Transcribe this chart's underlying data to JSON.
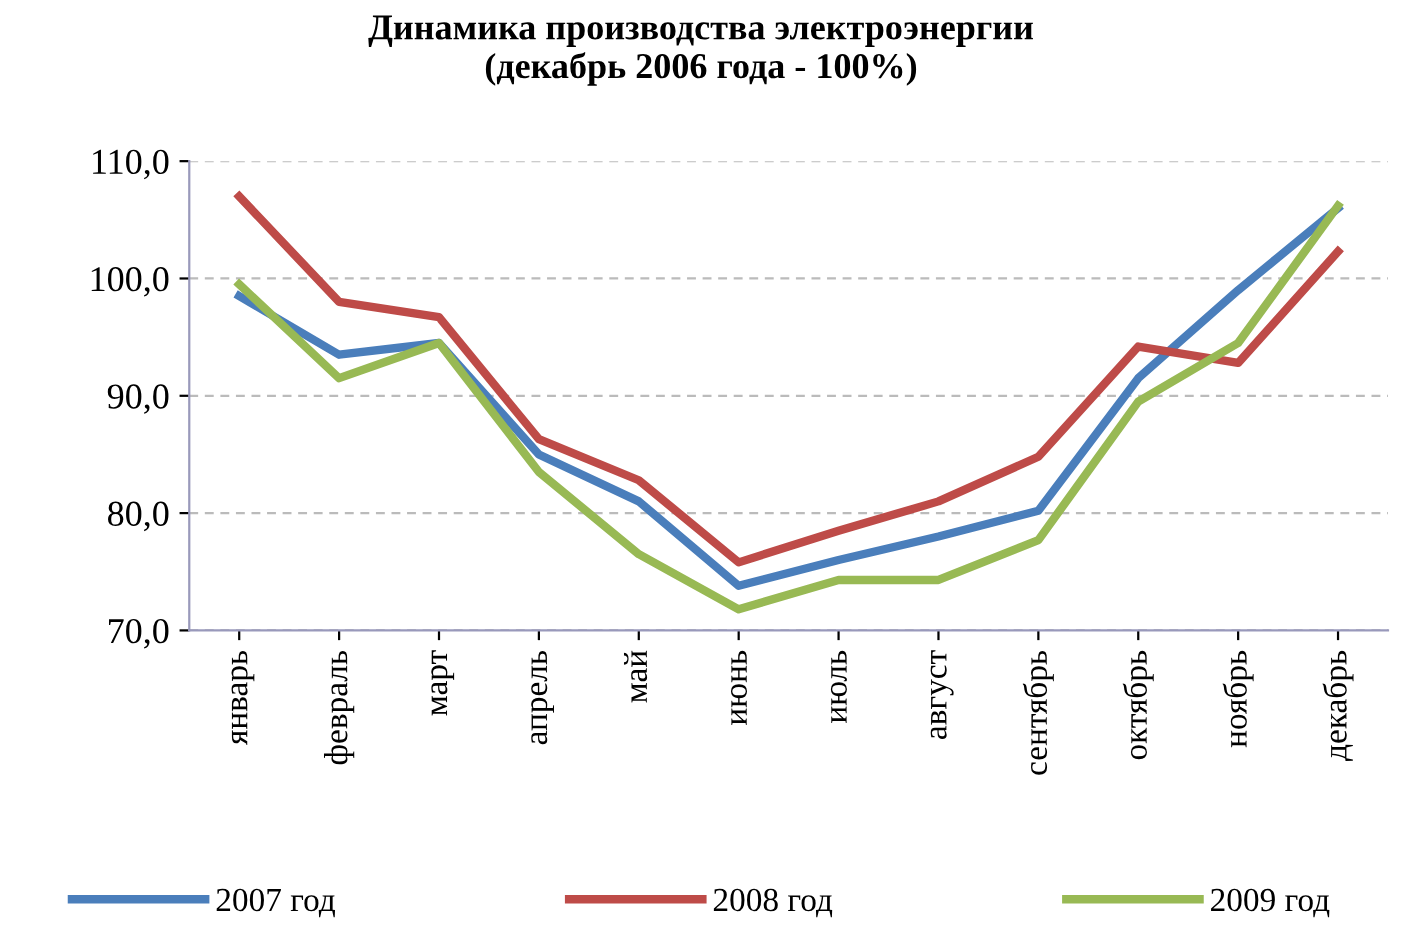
{
  "chart_data": {
    "type": "line",
    "title": "Динамика производства электроэнергии\n(декабрь 2006 года - 100%)",
    "categories": [
      "январь",
      "февраль",
      "март",
      "апрель",
      "май",
      "июнь",
      "июль",
      "август",
      "сентябрь",
      "октябрь",
      "ноябрь",
      "декабрь"
    ],
    "series": [
      {
        "name": "2007 год",
        "color": "#4a7ebb",
        "values": [
          98.5,
          93.5,
          94.5,
          85,
          81,
          73.8,
          76,
          78,
          80.2,
          91.5,
          99,
          106
        ]
      },
      {
        "name": "2008 год",
        "color": "#be4b48",
        "values": [
          107,
          98,
          96.7,
          86.3,
          82.8,
          75.8,
          78.5,
          81,
          84.8,
          94.2,
          92.8,
          102.3
        ]
      },
      {
        "name": "2009 год",
        "color": "#98b954",
        "values": [
          99.5,
          91.5,
          94.5,
          83.5,
          76.5,
          71.8,
          74.3,
          74.3,
          77.7,
          89.5,
          94.5,
          106.2
        ]
      }
    ],
    "ylim": [
      70,
      110
    ],
    "yticks": [
      {
        "value": 70,
        "label": "70,0"
      },
      {
        "value": 80,
        "label": "80,0"
      },
      {
        "value": 90,
        "label": "90,0"
      },
      {
        "value": 100,
        "label": "100,0"
      },
      {
        "value": 110,
        "label": "110,0"
      }
    ],
    "grid": "y",
    "legend": "bottom",
    "marker": "none",
    "line_style": "solid"
  }
}
